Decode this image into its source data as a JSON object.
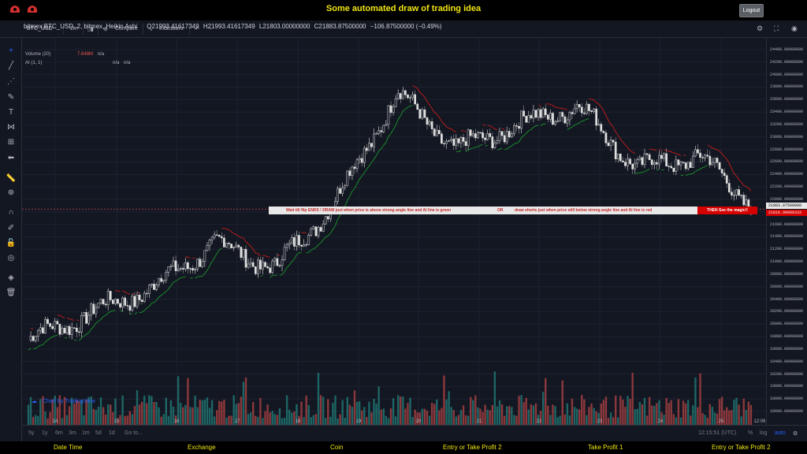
{
  "header": {
    "title": "Some automated draw of trading idea",
    "logout_label": "Logout"
  },
  "toolbar": {
    "symbol": "BTC_USD",
    "interval": "2m",
    "compare_label": "Compare",
    "indicators_label": "Indicators"
  },
  "legend": {
    "main": "bitmex:BTC_USD, 2, bitmex, Heikin Ashi",
    "open": "O21993.41617349",
    "high": "H21993.41617349",
    "low": "L21803.00000000",
    "close": "C21883.87500000",
    "change": "−106.87500000 (−0.49%)",
    "volume_label": "Volume (20)",
    "volume_value": "7.648M",
    "volume_na": "n/a",
    "ai_label": "AI (1, 1)",
    "ai_na1": "n/a",
    "ai_na2": "n/a"
  },
  "price_axis": {
    "labels": [
      "24400.00000000",
      "24200.00000000",
      "24000.00000000",
      "23800.00000000",
      "23600.00000000",
      "23400.00000000",
      "23200.00000000",
      "23000.00000000",
      "22800.00000000",
      "22600.00000000",
      "22400.00000000",
      "22200.00000000",
      "22000.00000000",
      "21800.00000000",
      "21600.00000000",
      "21400.00000000",
      "21200.00000000",
      "21000.00000000",
      "20800.00000000",
      "20600.00000000",
      "20400.00000000",
      "20200.00000000",
      "20000.00000000",
      "19800.00000000",
      "19600.00000000",
      "19400.00000000",
      "19200.00000000",
      "19000.00000000",
      "18800.00000000",
      "18600.00000000"
    ],
    "current_price": "21883.87500000",
    "red_price": "21816.90686333"
  },
  "time_axis": {
    "labels": [
      "14",
      "15",
      "16",
      "17",
      "18",
      "19",
      "20",
      "21",
      "22",
      "23",
      "24",
      "25"
    ],
    "last": "12:06"
  },
  "annotation": {
    "banner_part1": "Wait till flip ENDS  !    DRAW just when  price is above strong angle line and AI line is green",
    "banner_or": "OR",
    "banner_part2": "draw shorts just when price still below strong angle line and AI line is red",
    "magic": "THEN See the magic!!"
  },
  "bottom_bar": {
    "ranges": [
      "5y",
      "1y",
      "6m",
      "3m",
      "1m",
      "5d",
      "1d"
    ],
    "goto": "Go to...",
    "clock": "12:15:51 (UTC)",
    "percent": "%",
    "log": "log",
    "auto": "auto"
  },
  "watermark": "Chart by TradingView",
  "footer": {
    "labels": [
      "Date Time",
      "Exchange",
      "Coin",
      "Entry or Take Profit 2",
      "Take Profit 1",
      "Entry or Take Profit 2"
    ]
  },
  "colors": {
    "accent_yellow": "#f1e60f",
    "bg": "#131722",
    "up_volume": "#26a69a",
    "down_volume": "#ef5350",
    "ai_green": "#1b8a2b",
    "ai_red": "#b71c1c"
  },
  "chart_data": {
    "type": "line",
    "title": "",
    "xlabel": "",
    "ylabel": "",
    "ylim": [
      18500,
      24500
    ],
    "x": [
      "14",
      "15",
      "16",
      "17",
      "18",
      "19",
      "20",
      "21",
      "22",
      "23",
      "24",
      "25",
      "12:06"
    ],
    "series": [
      {
        "values": [
          19700,
          20200,
          20600,
          21300,
          20900,
          22000,
          23700,
          22800,
          23200,
          23500,
          22500,
          22700,
          21880
        ]
      }
    ]
  }
}
